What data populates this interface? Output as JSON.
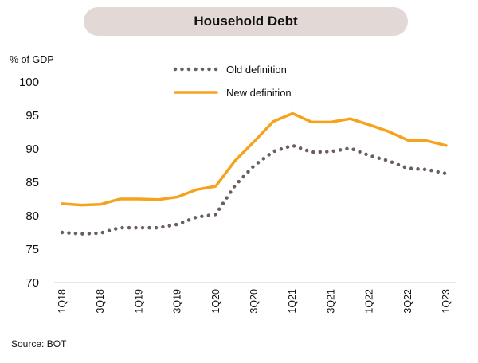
{
  "chart_data": {
    "type": "line",
    "title": "Household Debt",
    "ylabel": "% of GDP",
    "ylim": [
      70,
      100
    ],
    "yticks": [
      70,
      75,
      80,
      85,
      90,
      95,
      100
    ],
    "x": [
      "1Q18",
      "2Q18",
      "3Q18",
      "4Q18",
      "1Q19",
      "2Q19",
      "3Q19",
      "4Q19",
      "1Q20",
      "2Q20",
      "3Q20",
      "4Q20",
      "1Q21",
      "2Q21",
      "3Q21",
      "4Q21",
      "1Q22",
      "2Q22",
      "3Q22",
      "4Q22",
      "1Q23"
    ],
    "xtick_labels": [
      "1Q18",
      "3Q18",
      "1Q19",
      "3Q19",
      "1Q20",
      "3Q20",
      "1Q21",
      "3Q21",
      "1Q22",
      "3Q22",
      "1Q23"
    ],
    "series": [
      {
        "name": "Old definition",
        "style": "dotted",
        "color": "#6b5e5f",
        "values": [
          77.5,
          77.3,
          77.4,
          78.2,
          78.2,
          78.2,
          78.7,
          79.8,
          80.2,
          84.5,
          87.5,
          89.6,
          90.5,
          89.5,
          89.6,
          90.1,
          89.0,
          88.2,
          87.1,
          86.9,
          86.3
        ]
      },
      {
        "name": "New definition",
        "style": "solid",
        "color": "#f5a31c",
        "values": [
          81.8,
          81.6,
          81.7,
          82.5,
          82.5,
          82.4,
          82.8,
          83.9,
          84.4,
          88.2,
          91.1,
          94.1,
          95.3,
          94.0,
          94.0,
          94.5,
          93.6,
          92.6,
          91.3,
          91.2,
          90.5
        ]
      }
    ],
    "grid": false,
    "legend": "top-center",
    "source": "Source: BOT"
  }
}
